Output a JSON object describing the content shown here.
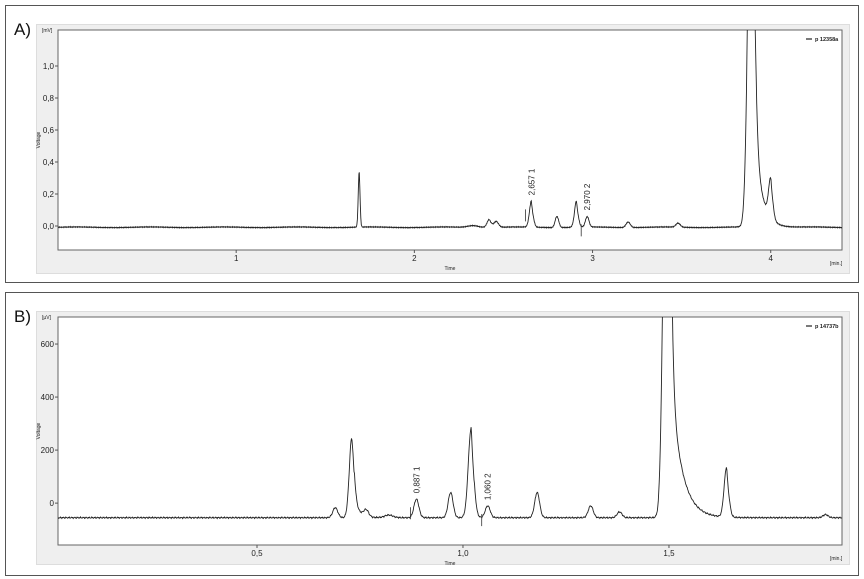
{
  "chart_data": [
    {
      "type": "line",
      "panel_label": "A)",
      "unit": "[mV]",
      "ylabel": "Voltage",
      "xlabel": "Time",
      "xunit": "[min.]",
      "legend": "p 12358a",
      "legend_position": "top-right",
      "grid": false,
      "xlim": [
        0,
        4.4
      ],
      "ylim": [
        -0.15,
        1.225
      ],
      "yticks": [
        {
          "v": 0,
          "label": "0,0"
        },
        {
          "v": 0.2,
          "label": "0,2"
        },
        {
          "v": 0.4,
          "label": "0,4"
        },
        {
          "v": 0.6,
          "label": "0,6"
        },
        {
          "v": 0.8,
          "label": "0,8"
        },
        {
          "v": 1.0,
          "label": "1,0"
        }
      ],
      "xticks": [
        {
          "v": 1,
          "label": "1"
        },
        {
          "v": 2,
          "label": "2"
        },
        {
          "v": 3,
          "label": "3"
        },
        {
          "v": 4,
          "label": "4"
        }
      ],
      "baseline": -0.008,
      "peaks": [
        {
          "rt": 1.69,
          "h": 0.35,
          "w": 0.005,
          "tail": 0
        },
        {
          "rt": 2.33,
          "h": 0.012,
          "w": 0.03,
          "tail": 0
        },
        {
          "rt": 2.42,
          "h": 0.05,
          "w": 0.012,
          "tail": 0.02
        },
        {
          "rt": 2.46,
          "h": 0.035,
          "w": 0.012,
          "tail": 0
        },
        {
          "rt": 2.657,
          "h": 0.165,
          "w": 0.011,
          "tail": 0.005
        },
        {
          "rt": 2.8,
          "h": 0.07,
          "w": 0.01,
          "tail": 0
        },
        {
          "rt": 2.91,
          "h": 0.165,
          "w": 0.011,
          "tail": 0.005
        },
        {
          "rt": 2.97,
          "h": 0.065,
          "w": 0.01,
          "tail": 0
        },
        {
          "rt": 3.2,
          "h": 0.035,
          "w": 0.012,
          "tail": 0
        },
        {
          "rt": 3.48,
          "h": 0.025,
          "w": 0.012,
          "tail": 0
        },
        {
          "rt": 3.89,
          "h": 2.5,
          "w": 0.018,
          "tail": 0.04
        },
        {
          "rt": 4.0,
          "h": 0.25,
          "w": 0.012,
          "tail": 0.01
        }
      ],
      "annotations": [
        {
          "rt": 2.657,
          "label": "2,657",
          "peak": "1"
        },
        {
          "rt": 2.97,
          "label": "2,970",
          "peak": "2"
        }
      ]
    },
    {
      "type": "line",
      "panel_label": "B)",
      "unit": "[µV]",
      "ylabel": "Voltage",
      "xlabel": "Time",
      "xunit": "[min.]",
      "legend": "p 14737b",
      "legend_position": "top-right",
      "grid": false,
      "xlim": [
        0.017,
        1.92
      ],
      "ylim": [
        -158,
        702
      ],
      "yticks": [
        {
          "v": 0,
          "label": "0"
        },
        {
          "v": 200,
          "label": "200"
        },
        {
          "v": 400,
          "label": "400"
        },
        {
          "v": 600,
          "label": "600"
        }
      ],
      "xticks": [
        {
          "v": 0.5,
          "label": "0,5"
        },
        {
          "v": 1.0,
          "label": "1,0"
        },
        {
          "v": 1.5,
          "label": "1,5"
        }
      ],
      "baseline": -55,
      "peaks": [
        {
          "rt": 0.69,
          "h": 38,
          "w": 0.006,
          "tail": 0
        },
        {
          "rt": 0.73,
          "h": 300,
          "w": 0.006,
          "tail": 0.012
        },
        {
          "rt": 0.765,
          "h": 25,
          "w": 0.006,
          "tail": 0
        },
        {
          "rt": 0.82,
          "h": 10,
          "w": 0.01,
          "tail": 0
        },
        {
          "rt": 0.887,
          "h": 70,
          "w": 0.006,
          "tail": 0
        },
        {
          "rt": 0.97,
          "h": 95,
          "w": 0.006,
          "tail": 0
        },
        {
          "rt": 1.02,
          "h": 340,
          "w": 0.007,
          "tail": 0.004
        },
        {
          "rt": 1.06,
          "h": 45,
          "w": 0.006,
          "tail": 0
        },
        {
          "rt": 1.18,
          "h": 95,
          "w": 0.006,
          "tail": 0
        },
        {
          "rt": 1.31,
          "h": 45,
          "w": 0.006,
          "tail": 0
        },
        {
          "rt": 1.38,
          "h": 22,
          "w": 0.006,
          "tail": 0
        },
        {
          "rt": 1.495,
          "h": 2000,
          "w": 0.008,
          "tail": 0.025
        },
        {
          "rt": 1.64,
          "h": 190,
          "w": 0.006,
          "tail": 0.003
        },
        {
          "rt": 1.88,
          "h": 12,
          "w": 0.006,
          "tail": 0
        }
      ],
      "annotations": [
        {
          "rt": 0.887,
          "label": "0,887",
          "peak": "1"
        },
        {
          "rt": 1.06,
          "label": "1,060",
          "peak": "2"
        }
      ]
    }
  ]
}
